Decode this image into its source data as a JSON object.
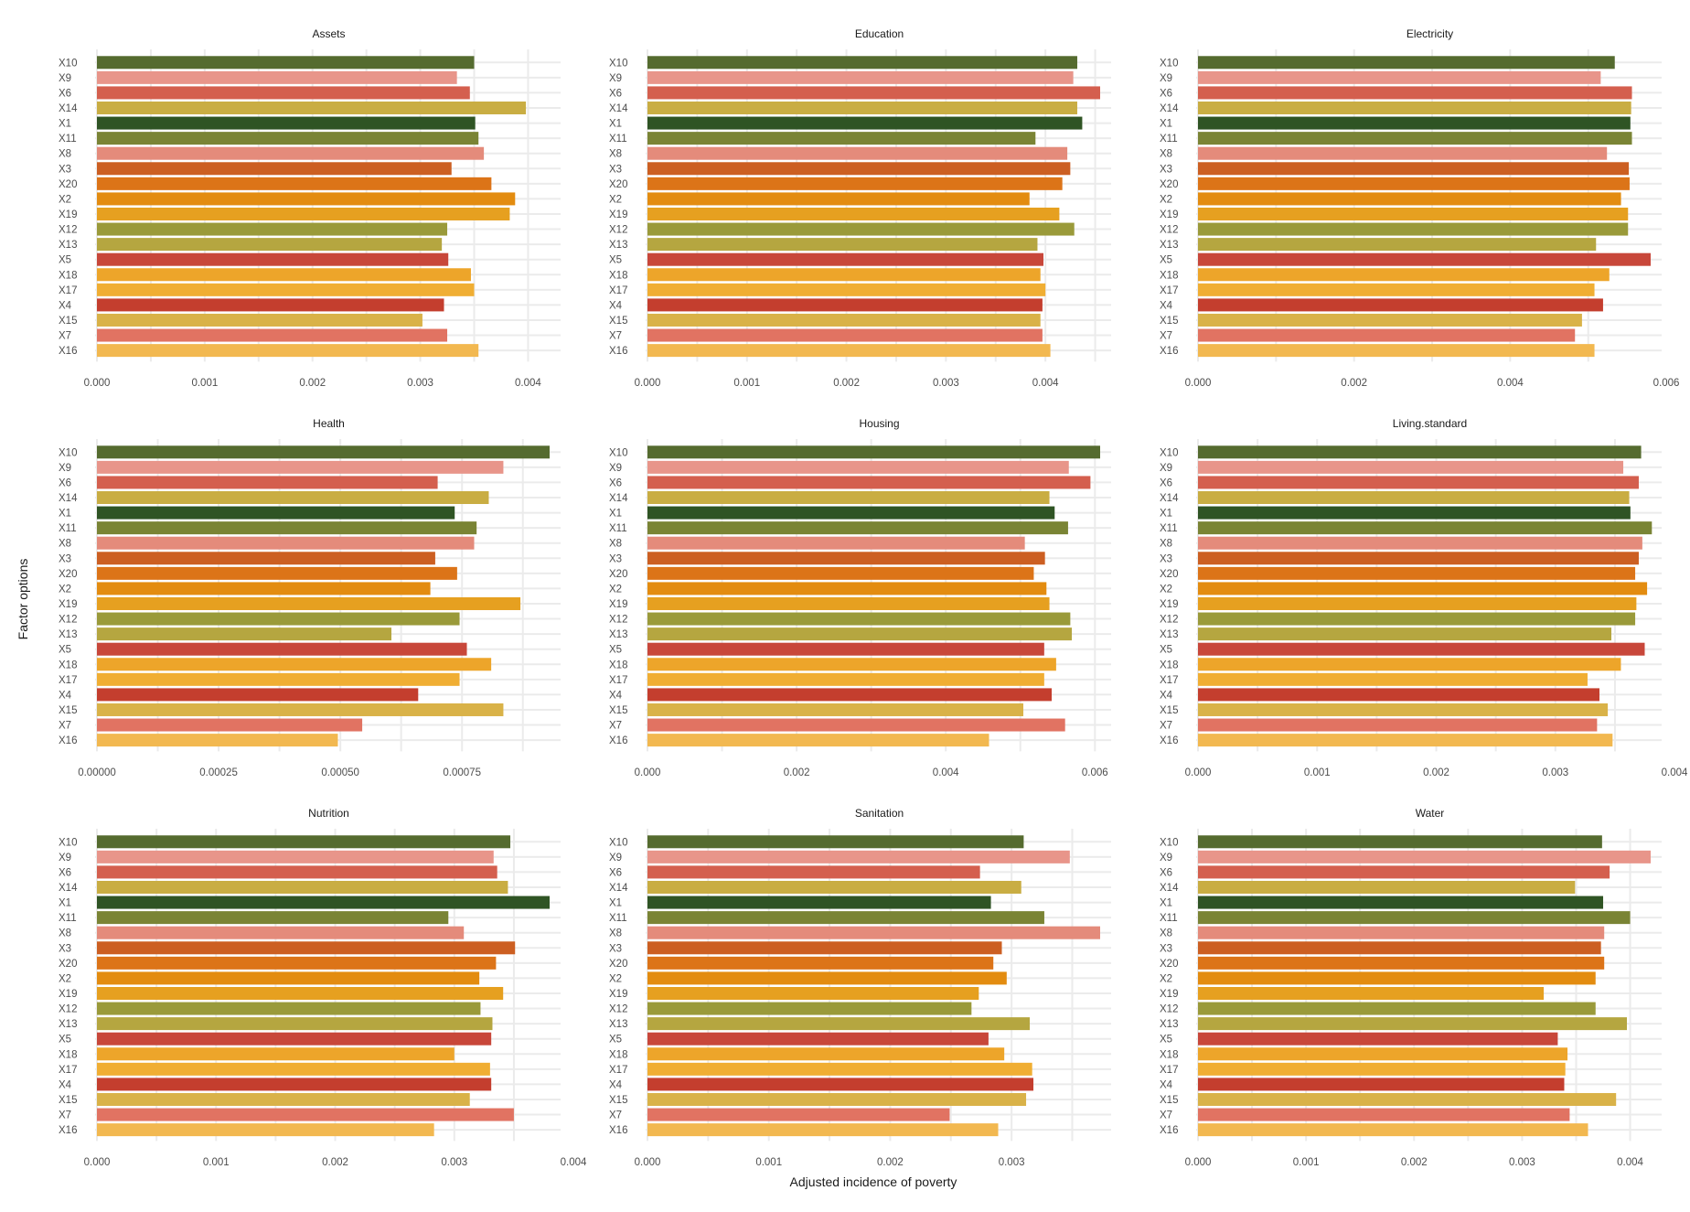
{
  "chart_data": {
    "type": "bar",
    "orientation": "horizontal",
    "layout": "facet-grid 3x3",
    "xlabel": "Adjusted incidence of poverty",
    "ylabel": "Factor options",
    "grid": true,
    "legend": "none",
    "categories": [
      "X10",
      "X9",
      "X6",
      "X14",
      "X1",
      "X11",
      "X8",
      "X3",
      "X20",
      "X2",
      "X19",
      "X12",
      "X13",
      "X5",
      "X18",
      "X17",
      "X4",
      "X15",
      "X7",
      "X16"
    ],
    "colors": [
      "#556b2f",
      "#e8958a",
      "#d45f4e",
      "#c9ad43",
      "#2f5424",
      "#7a8435",
      "#e48b7b",
      "#cc5f22",
      "#dc7418",
      "#e38c10",
      "#e6a020",
      "#9a9a3a",
      "#b5a640",
      "#c8473a",
      "#eda52a",
      "#f0ae33",
      "#c43e2e",
      "#d9b248",
      "#e17362",
      "#f2b850"
    ],
    "panels": [
      {
        "title": "Assets",
        "xlim": [
          0,
          0.0042
        ],
        "ticks": [
          "0.000",
          "0.001",
          "0.002",
          "0.003",
          "0.004"
        ],
        "tick_values": [
          0,
          0.001,
          0.002,
          0.003,
          0.004
        ],
        "values": [
          0.0035,
          0.00334,
          0.00346,
          0.00398,
          0.00351,
          0.00354,
          0.00359,
          0.00329,
          0.00366,
          0.00388,
          0.00383,
          0.00325,
          0.0032,
          0.00326,
          0.00347,
          0.0035,
          0.00322,
          0.00302,
          0.00325,
          0.00354
        ]
      },
      {
        "title": "Education",
        "xlim": [
          0,
          0.00455
        ],
        "ticks": [
          "0.000",
          "0.001",
          "0.002",
          "0.003",
          "0.004"
        ],
        "tick_values": [
          0,
          0.001,
          0.002,
          0.003,
          0.004
        ],
        "values": [
          0.00432,
          0.00428,
          0.00455,
          0.00432,
          0.00437,
          0.0039,
          0.00422,
          0.00425,
          0.00417,
          0.00384,
          0.00414,
          0.00429,
          0.00392,
          0.00398,
          0.00395,
          0.004,
          0.00397,
          0.00395,
          0.00397,
          0.00405
        ]
      },
      {
        "title": "Electricity",
        "xlim": [
          0,
          0.0058
        ],
        "ticks": [
          "0.000",
          "0.002",
          "0.004",
          "0.006"
        ],
        "tick_values": [
          0,
          0.002,
          0.004,
          0.006
        ],
        "values": [
          0.00534,
          0.00516,
          0.00556,
          0.00555,
          0.00554,
          0.00556,
          0.00524,
          0.00552,
          0.00553,
          0.00542,
          0.00551,
          0.00551,
          0.0051,
          0.0058,
          0.00527,
          0.00508,
          0.00519,
          0.00492,
          0.00483,
          0.00508
        ]
      },
      {
        "title": "Health",
        "xlim": [
          0,
          0.00093
        ],
        "ticks": [
          "0.00000",
          "0.00025",
          "0.00050",
          "0.00075"
        ],
        "tick_values": [
          0,
          0.00025,
          0.0005,
          0.00075
        ],
        "values": [
          0.00093,
          0.000835,
          0.0007,
          0.000805,
          0.000735,
          0.00078,
          0.000775,
          0.000695,
          0.00074,
          0.000685,
          0.00087,
          0.000745,
          0.000605,
          0.00076,
          0.00081,
          0.000745,
          0.00066,
          0.000835,
          0.000545,
          0.000495
        ]
      },
      {
        "title": "Housing",
        "xlim": [
          0,
          0.00607
        ],
        "ticks": [
          "0.000",
          "0.002",
          "0.004",
          "0.006"
        ],
        "tick_values": [
          0,
          0.002,
          0.004,
          0.006
        ],
        "values": [
          0.00607,
          0.00565,
          0.00594,
          0.00539,
          0.00546,
          0.00564,
          0.00506,
          0.00533,
          0.00518,
          0.00535,
          0.00539,
          0.00567,
          0.00569,
          0.00532,
          0.00548,
          0.00532,
          0.00542,
          0.00504,
          0.0056,
          0.00458
        ]
      },
      {
        "title": "Living.standard",
        "xlim": [
          0,
          0.0038
        ],
        "ticks": [
          "0.000",
          "0.001",
          "0.002",
          "0.003",
          "0.004"
        ],
        "tick_values": [
          0,
          0.001,
          0.002,
          0.003,
          0.004
        ],
        "values": [
          0.00372,
          0.00357,
          0.0037,
          0.00362,
          0.00363,
          0.00381,
          0.00373,
          0.0037,
          0.00367,
          0.00377,
          0.00368,
          0.00367,
          0.00347,
          0.00375,
          0.00355,
          0.00327,
          0.00337,
          0.00344,
          0.00335,
          0.00348
        ]
      },
      {
        "title": "Nutrition",
        "xlim": [
          0,
          0.0038
        ],
        "ticks": [
          "0.000",
          "0.001",
          "0.002",
          "0.003",
          "0.004"
        ],
        "tick_values": [
          0,
          0.001,
          0.002,
          0.003,
          0.004
        ],
        "values": [
          0.00347,
          0.00333,
          0.00336,
          0.00345,
          0.0038,
          0.00295,
          0.00308,
          0.00351,
          0.00335,
          0.00321,
          0.00341,
          0.00322,
          0.00332,
          0.00331,
          0.003,
          0.0033,
          0.00331,
          0.00313,
          0.0035,
          0.00283
        ]
      },
      {
        "title": "Sanitation",
        "xlim": [
          0,
          0.00373
        ],
        "ticks": [
          "0.000",
          "0.001",
          "0.002",
          "0.003"
        ],
        "tick_values": [
          0,
          0.001,
          0.002,
          0.003
        ],
        "values": [
          0.0031,
          0.00348,
          0.00274,
          0.00308,
          0.00283,
          0.00327,
          0.00373,
          0.00292,
          0.00285,
          0.00296,
          0.00273,
          0.00267,
          0.00315,
          0.00281,
          0.00294,
          0.00317,
          0.00318,
          0.00312,
          0.00249,
          0.00289
        ]
      },
      {
        "title": "Water",
        "xlim": [
          0,
          0.00419
        ],
        "ticks": [
          "0.000",
          "0.001",
          "0.002",
          "0.003",
          "0.004"
        ],
        "tick_values": [
          0,
          0.001,
          0.002,
          0.003,
          0.004
        ],
        "values": [
          0.00374,
          0.00419,
          0.00381,
          0.00349,
          0.00375,
          0.004,
          0.00376,
          0.00373,
          0.00376,
          0.00368,
          0.0032,
          0.00368,
          0.00397,
          0.00333,
          0.00342,
          0.0034,
          0.00339,
          0.00387,
          0.00344,
          0.00361
        ]
      }
    ]
  }
}
